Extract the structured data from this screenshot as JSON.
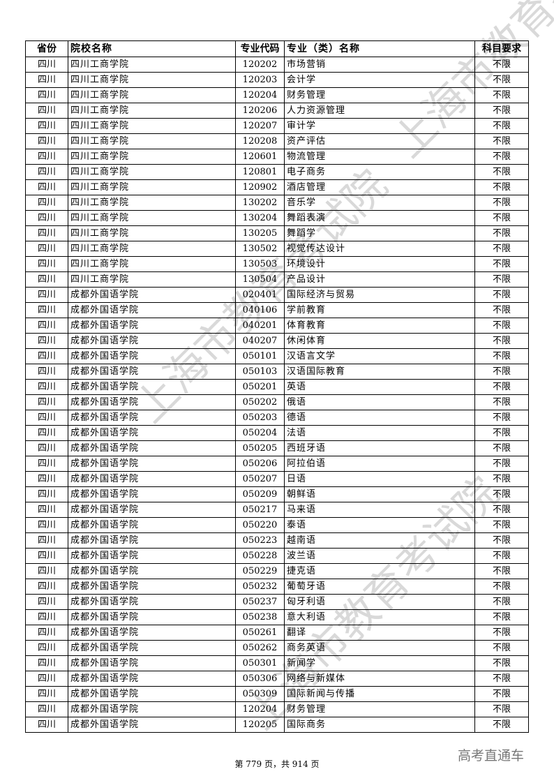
{
  "headers": [
    "省份",
    "院校名称",
    "专业代码",
    "专业（类）名称",
    "科目要求"
  ],
  "rows": [
    [
      "四川",
      "四川工商学院",
      "120202",
      "市场营销",
      "不限"
    ],
    [
      "四川",
      "四川工商学院",
      "120203",
      "会计学",
      "不限"
    ],
    [
      "四川",
      "四川工商学院",
      "120204",
      "财务管理",
      "不限"
    ],
    [
      "四川",
      "四川工商学院",
      "120206",
      "人力资源管理",
      "不限"
    ],
    [
      "四川",
      "四川工商学院",
      "120207",
      "审计学",
      "不限"
    ],
    [
      "四川",
      "四川工商学院",
      "120208",
      "资产评估",
      "不限"
    ],
    [
      "四川",
      "四川工商学院",
      "120601",
      "物流管理",
      "不限"
    ],
    [
      "四川",
      "四川工商学院",
      "120801",
      "电子商务",
      "不限"
    ],
    [
      "四川",
      "四川工商学院",
      "120902",
      "酒店管理",
      "不限"
    ],
    [
      "四川",
      "四川工商学院",
      "130202",
      "音乐学",
      "不限"
    ],
    [
      "四川",
      "四川工商学院",
      "130204",
      "舞蹈表演",
      "不限"
    ],
    [
      "四川",
      "四川工商学院",
      "130205",
      "舞蹈学",
      "不限"
    ],
    [
      "四川",
      "四川工商学院",
      "130502",
      "视觉传达设计",
      "不限"
    ],
    [
      "四川",
      "四川工商学院",
      "130503",
      "环境设计",
      "不限"
    ],
    [
      "四川",
      "四川工商学院",
      "130504",
      "产品设计",
      "不限"
    ],
    [
      "四川",
      "成都外国语学院",
      "020401",
      "国际经济与贸易",
      "不限"
    ],
    [
      "四川",
      "成都外国语学院",
      "040106",
      "学前教育",
      "不限"
    ],
    [
      "四川",
      "成都外国语学院",
      "040201",
      "体育教育",
      "不限"
    ],
    [
      "四川",
      "成都外国语学院",
      "040207",
      "休闲体育",
      "不限"
    ],
    [
      "四川",
      "成都外国语学院",
      "050101",
      "汉语言文学",
      "不限"
    ],
    [
      "四川",
      "成都外国语学院",
      "050103",
      "汉语国际教育",
      "不限"
    ],
    [
      "四川",
      "成都外国语学院",
      "050201",
      "英语",
      "不限"
    ],
    [
      "四川",
      "成都外国语学院",
      "050202",
      "俄语",
      "不限"
    ],
    [
      "四川",
      "成都外国语学院",
      "050203",
      "德语",
      "不限"
    ],
    [
      "四川",
      "成都外国语学院",
      "050204",
      "法语",
      "不限"
    ],
    [
      "四川",
      "成都外国语学院",
      "050205",
      "西班牙语",
      "不限"
    ],
    [
      "四川",
      "成都外国语学院",
      "050206",
      "阿拉伯语",
      "不限"
    ],
    [
      "四川",
      "成都外国语学院",
      "050207",
      "日语",
      "不限"
    ],
    [
      "四川",
      "成都外国语学院",
      "050209",
      "朝鲜语",
      "不限"
    ],
    [
      "四川",
      "成都外国语学院",
      "050217",
      "马来语",
      "不限"
    ],
    [
      "四川",
      "成都外国语学院",
      "050220",
      "泰语",
      "不限"
    ],
    [
      "四川",
      "成都外国语学院",
      "050223",
      "越南语",
      "不限"
    ],
    [
      "四川",
      "成都外国语学院",
      "050228",
      "波兰语",
      "不限"
    ],
    [
      "四川",
      "成都外国语学院",
      "050229",
      "捷克语",
      "不限"
    ],
    [
      "四川",
      "成都外国语学院",
      "050232",
      "葡萄牙语",
      "不限"
    ],
    [
      "四川",
      "成都外国语学院",
      "050237",
      "匈牙利语",
      "不限"
    ],
    [
      "四川",
      "成都外国语学院",
      "050238",
      "意大利语",
      "不限"
    ],
    [
      "四川",
      "成都外国语学院",
      "050261",
      "翻译",
      "不限"
    ],
    [
      "四川",
      "成都外国语学院",
      "050262",
      "商务英语",
      "不限"
    ],
    [
      "四川",
      "成都外国语学院",
      "050301",
      "新闻学",
      "不限"
    ],
    [
      "四川",
      "成都外国语学院",
      "050306",
      "网络与新媒体",
      "不限"
    ],
    [
      "四川",
      "成都外国语学院",
      "050309",
      "国际新闻与传播",
      "不限"
    ],
    [
      "四川",
      "成都外国语学院",
      "120204",
      "财务管理",
      "不限"
    ],
    [
      "四川",
      "成都外国语学院",
      "120205",
      "国际商务",
      "不限"
    ]
  ],
  "footer": "第 779 页，共 914 页",
  "watermark": "上海市教育考试院",
  "logo": "高考直通车"
}
